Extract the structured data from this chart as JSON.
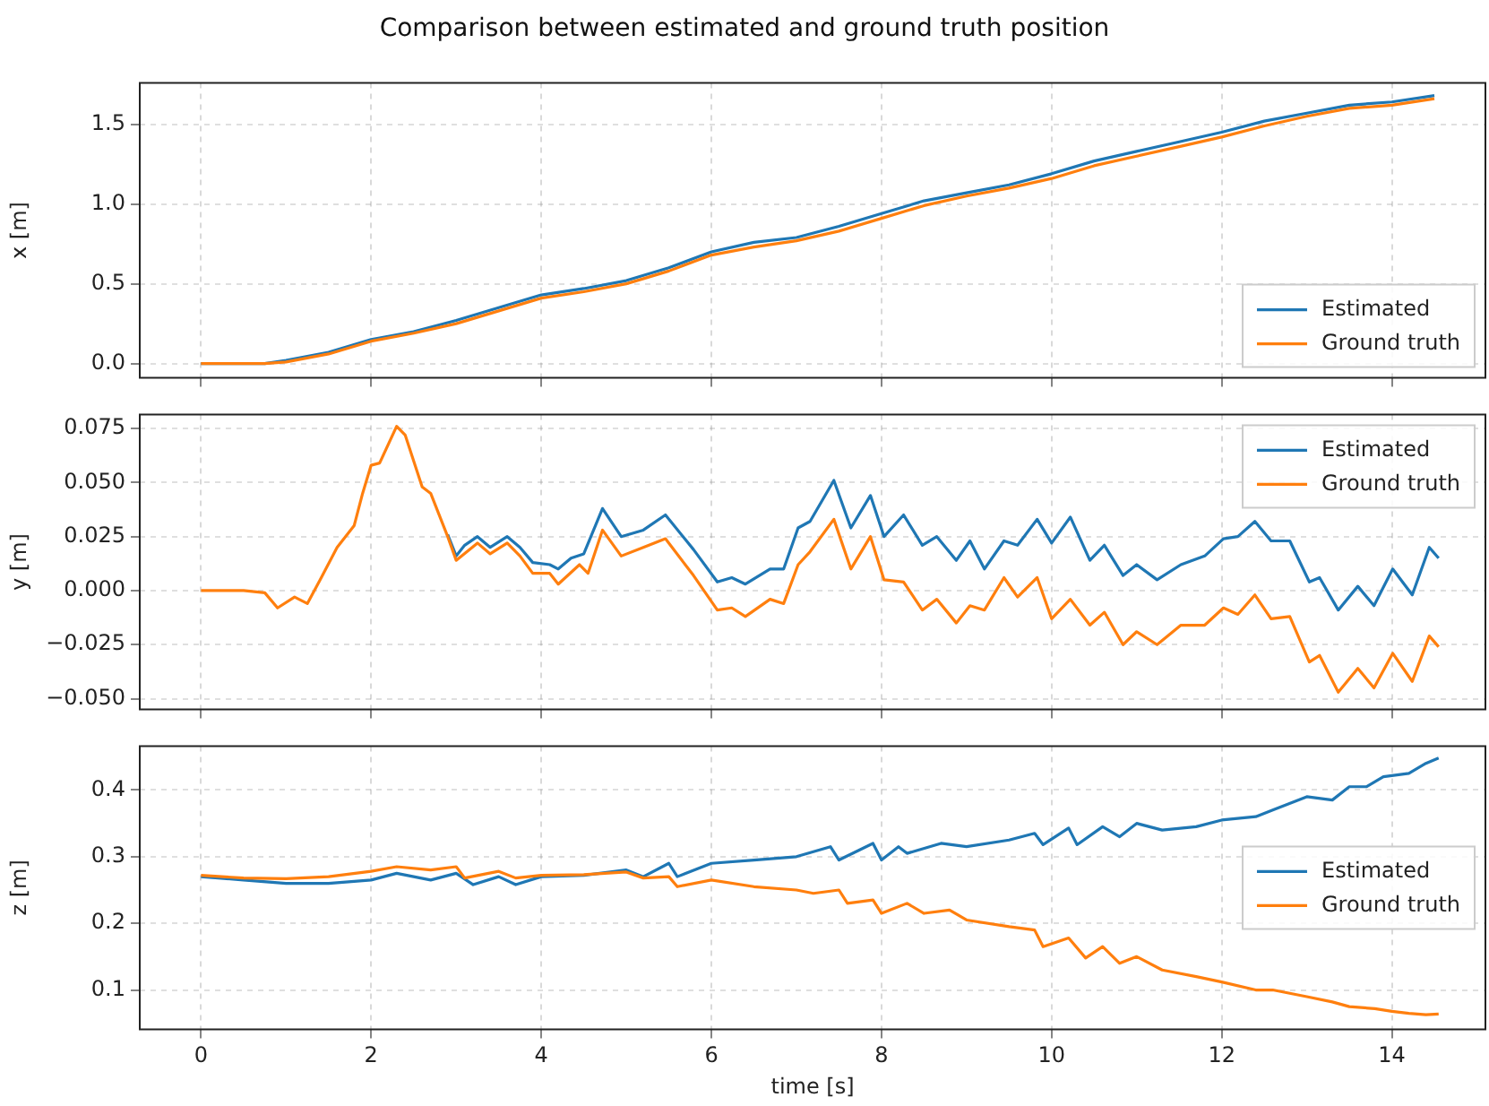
{
  "chart_data": [
    {
      "type": "line",
      "title": "Comparison between estimated and ground truth position",
      "ylabel": "x [m]",
      "xlim": [
        -0.72,
        15.1
      ],
      "xticks": [
        0,
        2,
        4,
        6,
        8,
        10,
        12,
        14
      ],
      "ylim": [
        -0.09,
        1.76
      ],
      "yticks": [
        {
          "value": 0,
          "label": "0.0"
        },
        {
          "value": 0.5,
          "label": "0.5"
        },
        {
          "value": 1,
          "label": "1.0"
        },
        {
          "value": 1.5,
          "label": "1.5"
        }
      ],
      "grid": true,
      "legend": "bottom right",
      "tick_labels": "y",
      "series": [
        {
          "name": "Estimated",
          "color": "#1f77b4",
          "x": [
            0,
            0.75,
            1,
            1.5,
            2,
            2.5,
            3,
            3.5,
            4,
            4.5,
            5,
            5.5,
            6,
            6.5,
            7,
            7.5,
            8,
            8.5,
            9,
            9.5,
            10,
            10.5,
            11,
            11.5,
            12,
            12.5,
            13,
            13.5,
            14,
            14.5
          ],
          "values": [
            0,
            0,
            0.02,
            0.07,
            0.15,
            0.2,
            0.27,
            0.35,
            0.43,
            0.47,
            0.52,
            0.6,
            0.7,
            0.76,
            0.79,
            0.86,
            0.94,
            1.02,
            1.07,
            1.12,
            1.19,
            1.27,
            1.33,
            1.39,
            1.45,
            1.52,
            1.57,
            1.62,
            1.64,
            1.68
          ]
        },
        {
          "name": "Ground truth",
          "color": "#ff7f0e",
          "x": [
            0,
            0.75,
            1,
            1.5,
            2,
            2.5,
            3,
            3.5,
            4,
            4.5,
            5,
            5.5,
            6,
            6.5,
            7,
            7.5,
            8,
            8.5,
            9,
            9.5,
            10,
            10.5,
            11,
            11.5,
            12,
            12.5,
            13,
            13.5,
            14,
            14.5
          ],
          "values": [
            0,
            0,
            0.01,
            0.06,
            0.14,
            0.19,
            0.25,
            0.33,
            0.41,
            0.45,
            0.5,
            0.58,
            0.68,
            0.73,
            0.77,
            0.83,
            0.91,
            0.99,
            1.05,
            1.1,
            1.16,
            1.24,
            1.3,
            1.36,
            1.42,
            1.49,
            1.55,
            1.6,
            1.62,
            1.66
          ]
        }
      ]
    },
    {
      "type": "line",
      "ylabel": "y [m]",
      "xlim": [
        -0.72,
        15.1
      ],
      "xticks": [
        0,
        2,
        4,
        6,
        8,
        10,
        12,
        14
      ],
      "ylim": [
        -0.055,
        0.0815
      ],
      "yticks": [
        {
          "value": -0.05,
          "label": "−0.050"
        },
        {
          "value": -0.025,
          "label": "−0.025"
        },
        {
          "value": 0,
          "label": "0.000"
        },
        {
          "value": 0.025,
          "label": "0.025"
        },
        {
          "value": 0.05,
          "label": "0.050"
        },
        {
          "value": 0.075,
          "label": "0.075"
        }
      ],
      "grid": true,
      "legend": "top right",
      "tick_labels": "y",
      "series": [
        {
          "name": "Estimated",
          "color": "#1f77b4",
          "x": [
            2.9,
            3,
            3.1,
            3.25,
            3.4,
            3.6,
            3.75,
            3.9,
            4.1,
            4.2,
            4.35,
            4.5,
            4.72,
            4.94,
            5.2,
            5.46,
            5.79,
            6.07,
            6.24,
            6.4,
            6.69,
            6.85,
            7.02,
            7.16,
            7.44,
            7.64,
            7.87,
            8.03,
            8.26,
            8.48,
            8.65,
            8.88,
            9.04,
            9.21,
            9.44,
            9.6,
            9.83,
            10,
            10.22,
            10.45,
            10.62,
            10.84,
            11,
            11.24,
            11.52,
            11.8,
            12.02,
            12.19,
            12.39,
            12.58,
            12.8,
            13.03,
            13.15,
            13.37,
            13.6,
            13.79,
            14.01,
            14.24,
            14.44,
            14.55
          ],
          "values": [
            0.026,
            0.016,
            0.021,
            0.025,
            0.02,
            0.025,
            0.02,
            0.013,
            0.012,
            0.01,
            0.015,
            0.017,
            0.038,
            0.025,
            0.028,
            0.035,
            0.019,
            0.004,
            0.006,
            0.003,
            0.01,
            0.01,
            0.029,
            0.032,
            0.051,
            0.029,
            0.044,
            0.025,
            0.035,
            0.021,
            0.025,
            0.014,
            0.023,
            0.01,
            0.023,
            0.021,
            0.033,
            0.022,
            0.034,
            0.014,
            0.021,
            0.007,
            0.012,
            0.005,
            0.012,
            0.016,
            0.024,
            0.025,
            0.032,
            0.023,
            0.023,
            0.004,
            0.006,
            -0.009,
            0.002,
            -0.007,
            0.01,
            -0.002,
            0.02,
            0.015
          ]
        },
        {
          "name": "Ground truth",
          "color": "#ff7f0e",
          "x": [
            0,
            0.5,
            0.75,
            0.9,
            1.1,
            1.25,
            1.4,
            1.6,
            1.8,
            1.9,
            2,
            2.1,
            2.3,
            2.4,
            2.6,
            2.7,
            2.9,
            3,
            3.25,
            3.4,
            3.6,
            3.75,
            3.9,
            4.1,
            4.2,
            4.45,
            4.55,
            4.72,
            4.94,
            5.2,
            5.46,
            5.79,
            6.07,
            6.24,
            6.4,
            6.69,
            6.85,
            7.02,
            7.16,
            7.44,
            7.64,
            7.87,
            8.03,
            8.26,
            8.48,
            8.65,
            8.88,
            9.04,
            9.21,
            9.44,
            9.6,
            9.83,
            10,
            10.22,
            10.45,
            10.62,
            10.84,
            11,
            11.24,
            11.52,
            11.8,
            12.02,
            12.19,
            12.39,
            12.58,
            12.8,
            13.03,
            13.15,
            13.37,
            13.6,
            13.79,
            14.01,
            14.24,
            14.44,
            14.55
          ],
          "values": [
            0,
            0,
            -0.001,
            -0.008,
            -0.003,
            -0.006,
            0.005,
            0.02,
            0.03,
            0.045,
            0.058,
            0.059,
            0.076,
            0.072,
            0.048,
            0.045,
            0.025,
            0.014,
            0.022,
            0.017,
            0.022,
            0.016,
            0.008,
            0.008,
            0.003,
            0.012,
            0.008,
            0.028,
            0.016,
            0.02,
            0.024,
            0.007,
            -0.009,
            -0.008,
            -0.012,
            -0.004,
            -0.006,
            0.012,
            0.018,
            0.033,
            0.01,
            0.025,
            0.005,
            0.004,
            -0.009,
            -0.004,
            -0.015,
            -0.007,
            -0.009,
            0.006,
            -0.003,
            0.006,
            -0.013,
            -0.004,
            -0.016,
            -0.01,
            -0.025,
            -0.019,
            -0.025,
            -0.016,
            -0.016,
            -0.008,
            -0.011,
            -0.002,
            -0.013,
            -0.012,
            -0.033,
            -0.03,
            -0.047,
            -0.036,
            -0.045,
            -0.029,
            -0.042,
            -0.021,
            -0.026
          ]
        }
      ]
    },
    {
      "type": "line",
      "xlabel": "time [s]",
      "ylabel": "z [m]",
      "xlim": [
        -0.72,
        15.1
      ],
      "xticks": [
        0,
        2,
        4,
        6,
        8,
        10,
        12,
        14
      ],
      "ylim": [
        0.041,
        0.466
      ],
      "yticks": [
        0.1,
        0.2,
        0.3,
        0.4
      ],
      "grid": true,
      "legend": "right",
      "series": [
        {
          "name": "Estimated",
          "color": "#1f77b4",
          "x": [
            0,
            0.5,
            1,
            1.5,
            2,
            2.3,
            2.7,
            3,
            3.2,
            3.5,
            3.7,
            4,
            4.5,
            5,
            5.2,
            5.5,
            5.6,
            6,
            6.5,
            7,
            7.4,
            7.5,
            7.9,
            8,
            8.2,
            8.3,
            8.7,
            9,
            9.5,
            9.8,
            9.9,
            10.2,
            10.3,
            10.6,
            10.8,
            11,
            11.3,
            11.7,
            12,
            12.4,
            12.6,
            13,
            13.3,
            13.5,
            13.7,
            13.9,
            14.2,
            14.4,
            14.55
          ],
          "values": [
            0.27,
            0.265,
            0.26,
            0.26,
            0.265,
            0.275,
            0.265,
            0.275,
            0.258,
            0.27,
            0.258,
            0.27,
            0.272,
            0.28,
            0.27,
            0.29,
            0.27,
            0.29,
            0.295,
            0.3,
            0.315,
            0.295,
            0.32,
            0.295,
            0.315,
            0.305,
            0.32,
            0.315,
            0.325,
            0.335,
            0.318,
            0.343,
            0.318,
            0.345,
            0.33,
            0.35,
            0.34,
            0.345,
            0.355,
            0.36,
            0.37,
            0.39,
            0.385,
            0.405,
            0.405,
            0.42,
            0.425,
            0.44,
            0.448
          ]
        },
        {
          "name": "Ground truth",
          "color": "#ff7f0e",
          "x": [
            0,
            0.5,
            1,
            1.5,
            2,
            2.3,
            2.7,
            3,
            3.1,
            3.5,
            3.7,
            4,
            4.5,
            5,
            5.2,
            5.5,
            5.6,
            6,
            6.5,
            7,
            7.2,
            7.5,
            7.6,
            7.9,
            8,
            8.3,
            8.5,
            8.8,
            9,
            9.5,
            9.8,
            9.9,
            10.2,
            10.4,
            10.6,
            10.8,
            11,
            11.3,
            11.7,
            12,
            12.4,
            12.6,
            13,
            13.3,
            13.5,
            13.8,
            14,
            14.2,
            14.4,
            14.55
          ],
          "values": [
            0.272,
            0.268,
            0.267,
            0.27,
            0.278,
            0.285,
            0.28,
            0.285,
            0.268,
            0.278,
            0.268,
            0.272,
            0.273,
            0.277,
            0.268,
            0.27,
            0.255,
            0.265,
            0.255,
            0.25,
            0.245,
            0.25,
            0.23,
            0.235,
            0.215,
            0.23,
            0.215,
            0.22,
            0.205,
            0.195,
            0.19,
            0.165,
            0.178,
            0.148,
            0.165,
            0.14,
            0.15,
            0.13,
            0.12,
            0.112,
            0.1,
            0.1,
            0.09,
            0.082,
            0.075,
            0.072,
            0.068,
            0.065,
            0.063,
            0.064
          ]
        }
      ]
    }
  ]
}
